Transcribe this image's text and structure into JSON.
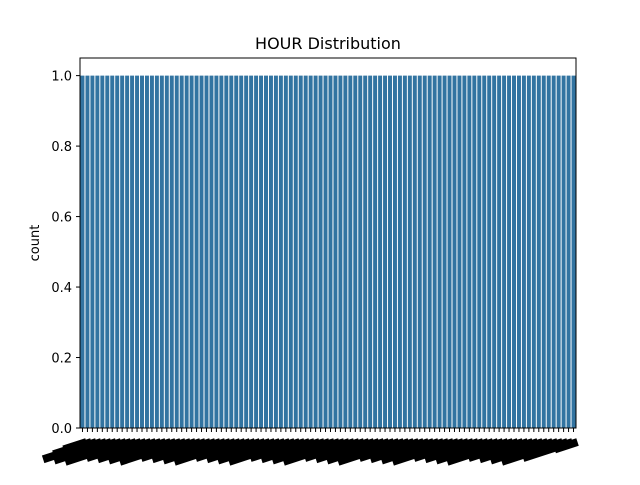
{
  "chart_data": {
    "type": "bar",
    "title": "HOUR Distribution",
    "xlabel": "",
    "ylabel": "count",
    "ylim": [
      0,
      1.05
    ],
    "yticks": [
      "0.0",
      "0.2",
      "0.4",
      "0.6",
      "0.8",
      "1.0"
    ],
    "bar_color": "#3274a1",
    "category_count": 100,
    "bar_value": 1,
    "x_tick_labels_legible": false,
    "grid": false,
    "legend": "none"
  }
}
